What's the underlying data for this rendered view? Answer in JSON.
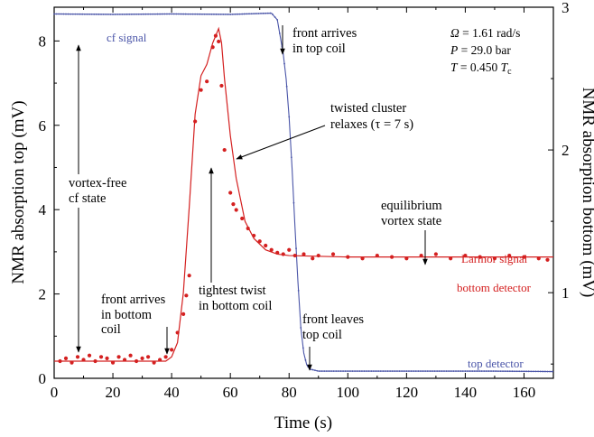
{
  "chart_data": {
    "type": "line",
    "xlabel": "Time  (s)",
    "ylabel_left": "NMR absorption top  (mV)",
    "ylabel_right": "NMR absorption bottom  (mV)",
    "xlim": [
      0,
      170
    ],
    "ylim_left": [
      0,
      8.8
    ],
    "ylim_right": [
      0.4,
      3.0
    ],
    "x_ticks": [
      0,
      20,
      40,
      60,
      80,
      100,
      120,
      140,
      160
    ],
    "y_left_ticks": [
      0,
      2,
      4,
      6,
      8
    ],
    "y_right_ticks": [
      1,
      2,
      3
    ],
    "colors": {
      "top": "#4a55a8",
      "bottom": "#d42020"
    },
    "series": [
      {
        "name": "cf signal",
        "axis": "left",
        "color": "#4a55a8",
        "label_secondary": "top detector",
        "points": [
          [
            0,
            8.64
          ],
          [
            20,
            8.63
          ],
          [
            40,
            8.64
          ],
          [
            60,
            8.63
          ],
          [
            74,
            8.66
          ],
          [
            76,
            8.5
          ],
          [
            78,
            7.7
          ],
          [
            79,
            7.1
          ],
          [
            80,
            6.2
          ],
          [
            81,
            5.0
          ],
          [
            82,
            3.6
          ],
          [
            83,
            2.3
          ],
          [
            84,
            1.2
          ],
          [
            85,
            0.6
          ],
          [
            86,
            0.32
          ],
          [
            87,
            0.22
          ],
          [
            90,
            0.17
          ],
          [
            110,
            0.17
          ],
          [
            130,
            0.17
          ],
          [
            150,
            0.17
          ],
          [
            170,
            0.16
          ]
        ]
      },
      {
        "name": "Larmor signal",
        "axis": "right",
        "color": "#d42020",
        "label_secondary": "bottom detector",
        "fit": [
          [
            0,
            0.52
          ],
          [
            38,
            0.52
          ],
          [
            40,
            0.55
          ],
          [
            42,
            0.65
          ],
          [
            44,
            1.0
          ],
          [
            46,
            1.6
          ],
          [
            48,
            2.25
          ],
          [
            50,
            2.52
          ],
          [
            52,
            2.6
          ],
          [
            54,
            2.75
          ],
          [
            56,
            2.85
          ],
          [
            57,
            2.75
          ],
          [
            58,
            2.5
          ],
          [
            60,
            2.1
          ],
          [
            62,
            1.8
          ],
          [
            65,
            1.5
          ],
          [
            68,
            1.38
          ],
          [
            72,
            1.3
          ],
          [
            76,
            1.27
          ],
          [
            80,
            1.26
          ],
          [
            100,
            1.25
          ],
          [
            170,
            1.25
          ]
        ],
        "points": [
          [
            2,
            0.52
          ],
          [
            4,
            0.54
          ],
          [
            6,
            0.51
          ],
          [
            8,
            0.55
          ],
          [
            10,
            0.53
          ],
          [
            12,
            0.56
          ],
          [
            14,
            0.52
          ],
          [
            16,
            0.55
          ],
          [
            18,
            0.54
          ],
          [
            20,
            0.51
          ],
          [
            22,
            0.55
          ],
          [
            24,
            0.53
          ],
          [
            26,
            0.56
          ],
          [
            28,
            0.52
          ],
          [
            30,
            0.54
          ],
          [
            32,
            0.55
          ],
          [
            34,
            0.51
          ],
          [
            36,
            0.53
          ],
          [
            38,
            0.55
          ],
          [
            40,
            0.6
          ],
          [
            42,
            0.72
          ],
          [
            44,
            0.85
          ],
          [
            45,
            0.98
          ],
          [
            46,
            1.12
          ],
          [
            48,
            2.2
          ],
          [
            50,
            2.42
          ],
          [
            52,
            2.48
          ],
          [
            54,
            2.72
          ],
          [
            55,
            2.8
          ],
          [
            56,
            2.76
          ],
          [
            57,
            2.45
          ],
          [
            58,
            2.0
          ],
          [
            60,
            1.7
          ],
          [
            61,
            1.62
          ],
          [
            62,
            1.58
          ],
          [
            64,
            1.52
          ],
          [
            66,
            1.45
          ],
          [
            68,
            1.4
          ],
          [
            70,
            1.36
          ],
          [
            72,
            1.33
          ],
          [
            74,
            1.3
          ],
          [
            76,
            1.28
          ],
          [
            78,
            1.27
          ],
          [
            80,
            1.3
          ],
          [
            82,
            1.26
          ],
          [
            85,
            1.27
          ],
          [
            88,
            1.24
          ],
          [
            90,
            1.26
          ],
          [
            95,
            1.27
          ],
          [
            100,
            1.25
          ],
          [
            105,
            1.24
          ],
          [
            110,
            1.26
          ],
          [
            115,
            1.25
          ],
          [
            120,
            1.24
          ],
          [
            125,
            1.26
          ],
          [
            130,
            1.27
          ],
          [
            135,
            1.24
          ],
          [
            140,
            1.26
          ],
          [
            145,
            1.25
          ],
          [
            150,
            1.24
          ],
          [
            155,
            1.26
          ],
          [
            160,
            1.25
          ],
          [
            165,
            1.24
          ],
          [
            168,
            1.23
          ]
        ]
      }
    ],
    "parameters": [
      {
        "symbol": "Ω",
        "rest": " = 1.61 rad/s"
      },
      {
        "symbol": "P",
        "rest": " = 29.0 bar"
      },
      {
        "symbol": "T",
        "rest": " = 0.450 ",
        "unit_symbol": "T",
        "unit_sub": "c"
      }
    ],
    "annotations": {
      "front_top_1": "front arrives",
      "front_top_2": "in top coil",
      "twisted_1": "twisted cluster",
      "twisted_2": "relaxes (τ = 7 s)",
      "vortex_free_1": "vortex-free",
      "vortex_free_2": "cf state",
      "equilibrium_1": "equilibrium",
      "equilibrium_2": "vortex state",
      "tightest_1": "tightest twist",
      "tightest_2": "in bottom coil",
      "front_bottom_1": "front arrives",
      "front_bottom_2": "in bottom",
      "front_bottom_3": "coil",
      "front_leaves_1": "front leaves",
      "front_leaves_2": "top coil",
      "cf_signal": "cf signal",
      "larmor_signal": "Larmor signal",
      "bottom_detector": "bottom detector",
      "top_detector": "top detector"
    }
  }
}
